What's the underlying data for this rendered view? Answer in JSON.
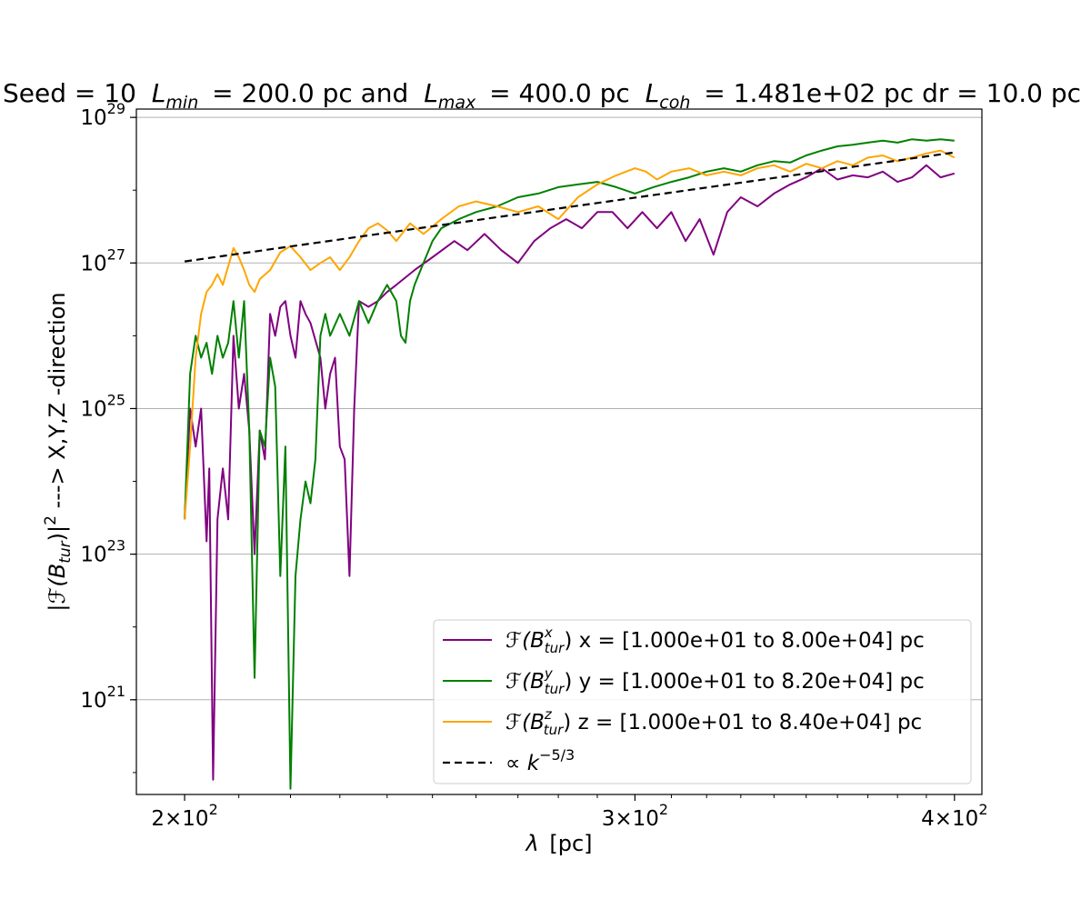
{
  "chart_data": {
    "type": "line",
    "title": {
      "seed": "Seed = 10",
      "lmin": "= 200.0 pc and",
      "lmax": "= 400.0 pc",
      "lcoh": "= 1.481e+02 pc dr = 10.0 pc"
    },
    "xlabel": {
      "symbol": "λ",
      "unit": "[pc]"
    },
    "ylabel": {
      "lead": "|",
      "func": "ℱ",
      "arg": "(B",
      "sub": "tur",
      "close": ")|",
      "sup": "2",
      "tail": " ---> X,Y,Z -direction"
    },
    "xscale": "log",
    "yscale": "log",
    "xlim": [
      191.5,
      410
    ],
    "ylim": [
      5e+19,
      1.3e+29
    ],
    "x_ticks": [
      {
        "value": 200,
        "mant": "2",
        "times": "×",
        "base": "10",
        "exp": "2"
      },
      {
        "value": 300,
        "mant": "3",
        "times": "×",
        "base": "10",
        "exp": "2"
      },
      {
        "value": 400,
        "mant": "4",
        "times": "×",
        "base": "10",
        "exp": "2"
      }
    ],
    "y_ticks": [
      {
        "value": 1e+21,
        "base": "10",
        "exp": "21"
      },
      {
        "value": 1e+23,
        "base": "10",
        "exp": "23"
      },
      {
        "value": 1e+25,
        "base": "10",
        "exp": "25"
      },
      {
        "value": 1e+27,
        "base": "10",
        "exp": "27"
      },
      {
        "value": 1e+29,
        "base": "10",
        "exp": "29"
      }
    ],
    "grid": "horizontal",
    "legend_position": "lower-right",
    "series": [
      {
        "key": "bx",
        "label": {
          "func": "ℱ",
          "arg": "(B",
          "sup": "x",
          "sub": "tur",
          "close": ")",
          "text": " x = [1.000e+01 to 8.00e+04] pc"
        },
        "color": "#800080",
        "style": "solid",
        "points": [
          [
            200,
            3e+23
          ],
          [
            201,
            1e+25
          ],
          [
            202,
            3e+24
          ],
          [
            203,
            1e+25
          ],
          [
            204,
            1.5e+23
          ],
          [
            204.5,
            1.5e+24
          ],
          [
            205.2,
            8e+19
          ],
          [
            206,
            3e+23
          ],
          [
            207,
            1.5e+24
          ],
          [
            208,
            3e+23
          ],
          [
            209,
            1e+26
          ],
          [
            210,
            1e+25
          ],
          [
            211,
            3e+25
          ],
          [
            212,
            5e+24
          ],
          [
            213,
            1e+23
          ],
          [
            214,
            5e+24
          ],
          [
            215,
            2e+24
          ],
          [
            216,
            2e+26
          ],
          [
            217,
            1e+26
          ],
          [
            218,
            2.5e+26
          ],
          [
            219,
            3e+26
          ],
          [
            220,
            1e+26
          ],
          [
            221,
            5e+25
          ],
          [
            222,
            3e+26
          ],
          [
            223,
            2e+26
          ],
          [
            224,
            1.5e+26
          ],
          [
            226,
            5e+25
          ],
          [
            227,
            1e+25
          ],
          [
            228,
            3e+25
          ],
          [
            229,
            5e+25
          ],
          [
            230,
            3e+24
          ],
          [
            231,
            2e+24
          ],
          [
            232,
            5e+22
          ],
          [
            233,
            1e+25
          ],
          [
            234,
            3e+26
          ],
          [
            236,
            2.5e+26
          ],
          [
            238,
            3e+26
          ],
          [
            240,
            4e+26
          ],
          [
            242,
            5e+26
          ],
          [
            246,
            8e+26
          ],
          [
            250,
            1.2e+27
          ],
          [
            255,
            2e+27
          ],
          [
            258,
            1.5e+27
          ],
          [
            262,
            2.5e+27
          ],
          [
            266,
            1.5e+27
          ],
          [
            270,
            1e+27
          ],
          [
            274,
            2e+27
          ],
          [
            278,
            3e+27
          ],
          [
            282,
            4e+27
          ],
          [
            286,
            3e+27
          ],
          [
            290,
            5e+27
          ],
          [
            294,
            5e+27
          ],
          [
            298,
            3e+27
          ],
          [
            302,
            5e+27
          ],
          [
            306,
            3e+27
          ],
          [
            310,
            5e+27
          ],
          [
            314,
            2e+27
          ],
          [
            318,
            4e+27
          ],
          [
            322,
            1.3e+27
          ],
          [
            326,
            5e+27
          ],
          [
            330,
            8e+27
          ],
          [
            335,
            6e+27
          ],
          [
            340,
            9e+27
          ],
          [
            345,
            1.2e+28
          ],
          [
            350,
            1.5e+28
          ],
          [
            355,
            2e+28
          ],
          [
            360,
            1.4e+28
          ],
          [
            365,
            1.6e+28
          ],
          [
            370,
            1.5e+28
          ],
          [
            375,
            1.8e+28
          ],
          [
            380,
            1.3e+28
          ],
          [
            385,
            1.5e+28
          ],
          [
            390,
            2.2e+28
          ],
          [
            395,
            1.5e+28
          ],
          [
            400,
            1.7e+28
          ]
        ]
      },
      {
        "key": "by",
        "label": {
          "func": "ℱ",
          "arg": "(B",
          "sup": "y",
          "sub": "tur",
          "close": ")",
          "text": " y = [1.000e+01 to 8.20e+04] pc"
        },
        "color": "#008000",
        "style": "solid",
        "points": [
          [
            200,
            3e+23
          ],
          [
            201,
            3e+25
          ],
          [
            202,
            1e+26
          ],
          [
            203,
            5e+25
          ],
          [
            204,
            8e+25
          ],
          [
            205,
            3e+25
          ],
          [
            206,
            1e+26
          ],
          [
            207,
            5e+25
          ],
          [
            208,
            8e+25
          ],
          [
            209,
            3e+26
          ],
          [
            210,
            5e+25
          ],
          [
            211,
            3e+26
          ],
          [
            212,
            5e+24
          ],
          [
            213,
            2e+21
          ],
          [
            214,
            5e+24
          ],
          [
            215,
            3e+24
          ],
          [
            216,
            5e+25
          ],
          [
            217,
            2e+25
          ],
          [
            218,
            5e+22
          ],
          [
            219,
            3e+24
          ],
          [
            220,
            6e+19
          ],
          [
            221,
            5e+22
          ],
          [
            222,
            3e+23
          ],
          [
            223,
            1e+24
          ],
          [
            224,
            5e+23
          ],
          [
            225,
            2e+24
          ],
          [
            226,
            1e+26
          ],
          [
            227,
            2e+26
          ],
          [
            228,
            1e+26
          ],
          [
            230,
            2e+26
          ],
          [
            232,
            1e+26
          ],
          [
            234,
            3e+26
          ],
          [
            236,
            1.5e+26
          ],
          [
            238,
            3e+26
          ],
          [
            240,
            5e+26
          ],
          [
            242,
            3e+26
          ],
          [
            243,
            1e+26
          ],
          [
            244,
            8e+25
          ],
          [
            245,
            3e+26
          ],
          [
            246,
            5e+26
          ],
          [
            248,
            1e+27
          ],
          [
            250,
            2e+27
          ],
          [
            252,
            3e+27
          ],
          [
            256,
            4e+27
          ],
          [
            260,
            5e+27
          ],
          [
            265,
            6e+27
          ],
          [
            270,
            8e+27
          ],
          [
            275,
            9e+27
          ],
          [
            280,
            1.1e+28
          ],
          [
            285,
            1.2e+28
          ],
          [
            290,
            1.3e+28
          ],
          [
            295,
            1.1e+28
          ],
          [
            300,
            9e+27
          ],
          [
            305,
            1.1e+28
          ],
          [
            310,
            1.3e+28
          ],
          [
            315,
            1.5e+28
          ],
          [
            320,
            1.8e+28
          ],
          [
            325,
            2e+28
          ],
          [
            330,
            1.8e+28
          ],
          [
            335,
            2.2e+28
          ],
          [
            340,
            2.5e+28
          ],
          [
            345,
            2.4e+28
          ],
          [
            350,
            3e+28
          ],
          [
            355,
            3.5e+28
          ],
          [
            360,
            4e+28
          ],
          [
            365,
            4.2e+28
          ],
          [
            370,
            4.5e+28
          ],
          [
            375,
            4.8e+28
          ],
          [
            380,
            4.5e+28
          ],
          [
            385,
            5e+28
          ],
          [
            390,
            4.8e+28
          ],
          [
            395,
            5e+28
          ],
          [
            400,
            4.8e+28
          ]
        ]
      },
      {
        "key": "bz",
        "label": {
          "func": "ℱ",
          "arg": "(B",
          "sup": "z",
          "sub": "tur",
          "close": ")",
          "text": " z = [1.000e+01 to 8.40e+04] pc"
        },
        "color": "#FFA500",
        "style": "solid",
        "points": [
          [
            200,
            3e+23
          ],
          [
            201,
            3e+24
          ],
          [
            202,
            5e+25
          ],
          [
            203,
            2e+26
          ],
          [
            204,
            4e+26
          ],
          [
            205,
            5e+26
          ],
          [
            206,
            7e+26
          ],
          [
            207,
            5e+26
          ],
          [
            208,
            9e+26
          ],
          [
            209,
            1.6e+27
          ],
          [
            210,
            1.2e+27
          ],
          [
            211,
            8e+26
          ],
          [
            212,
            5e+26
          ],
          [
            213,
            4e+26
          ],
          [
            214,
            6e+26
          ],
          [
            216,
            8e+26
          ],
          [
            218,
            1.4e+27
          ],
          [
            220,
            1.7e+27
          ],
          [
            222,
            1.2e+27
          ],
          [
            224,
            8e+26
          ],
          [
            226,
            1e+27
          ],
          [
            228,
            1.2e+27
          ],
          [
            230,
            8e+26
          ],
          [
            232,
            1.2e+27
          ],
          [
            234,
            2e+27
          ],
          [
            236,
            3e+27
          ],
          [
            238,
            3.5e+27
          ],
          [
            240,
            2.8e+27
          ],
          [
            242,
            2e+27
          ],
          [
            245,
            3.5e+27
          ],
          [
            248,
            2.5e+27
          ],
          [
            252,
            4e+27
          ],
          [
            256,
            6e+27
          ],
          [
            260,
            7e+27
          ],
          [
            265,
            6e+27
          ],
          [
            270,
            5e+27
          ],
          [
            275,
            6e+27
          ],
          [
            280,
            4e+27
          ],
          [
            285,
            8e+27
          ],
          [
            290,
            1.2e+28
          ],
          [
            295,
            1.6e+28
          ],
          [
            300,
            2e+28
          ],
          [
            303,
            1.8e+28
          ],
          [
            306,
            1.4e+28
          ],
          [
            310,
            1.8e+28
          ],
          [
            315,
            2e+28
          ],
          [
            320,
            1.6e+28
          ],
          [
            325,
            1.8e+28
          ],
          [
            330,
            1.6e+28
          ],
          [
            335,
            2e+28
          ],
          [
            340,
            2.2e+28
          ],
          [
            345,
            1.8e+28
          ],
          [
            350,
            2.3e+28
          ],
          [
            355,
            2e+28
          ],
          [
            360,
            2.5e+28
          ],
          [
            365,
            2.2e+28
          ],
          [
            370,
            2.8e+28
          ],
          [
            375,
            3e+28
          ],
          [
            380,
            2.5e+28
          ],
          [
            385,
            2.8e+28
          ],
          [
            390,
            3.2e+28
          ],
          [
            395,
            3.5e+28
          ],
          [
            400,
            2.8e+28
          ]
        ]
      },
      {
        "key": "fit",
        "label": {
          "pre": "∝ ",
          "base": "k",
          "sup": "−5/3"
        },
        "color": "#000000",
        "style": "dashed",
        "points": [
          [
            200,
            1.05e+27
          ],
          [
            400,
            3.3e+28
          ]
        ]
      }
    ]
  }
}
